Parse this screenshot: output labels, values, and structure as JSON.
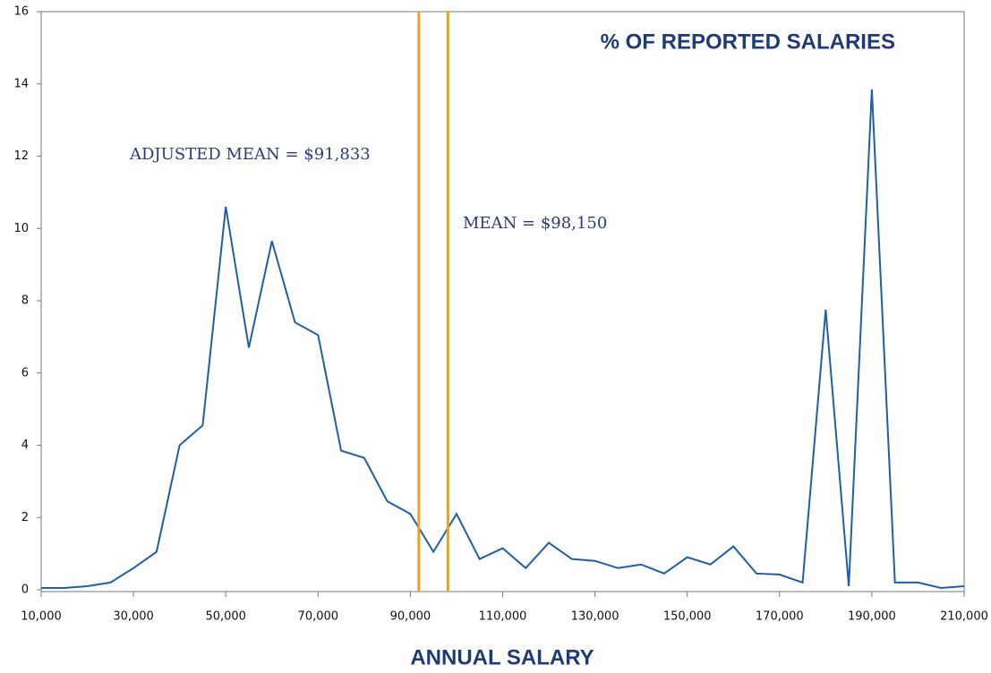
{
  "chart_data": {
    "type": "line",
    "title": "% OF REPORTED SALARIES",
    "x_label": "ANNUAL SALARY",
    "x": [
      10000,
      15000,
      20000,
      25000,
      30000,
      35000,
      40000,
      45000,
      50000,
      55000,
      60000,
      65000,
      70000,
      75000,
      80000,
      85000,
      90000,
      95000,
      100000,
      105000,
      110000,
      115000,
      120000,
      125000,
      130000,
      135000,
      140000,
      145000,
      150000,
      155000,
      160000,
      165000,
      170000,
      175000,
      180000,
      185000,
      190000,
      195000,
      200000,
      205000,
      210000
    ],
    "series": [
      {
        "color": "#1f5fa8",
        "values": [
          0.05,
          0.05,
          0.1,
          0.2,
          0.6,
          1.05,
          4.0,
          4.55,
          10.6,
          6.7,
          9.65,
          7.4,
          7.05,
          3.85,
          3.65,
          2.45,
          2.1,
          1.05,
          2.1,
          0.85,
          1.15,
          0.6,
          1.3,
          0.85,
          0.8,
          0.6,
          0.7,
          0.45,
          0.9,
          0.7,
          1.2,
          0.45,
          0.42,
          0.2,
          7.75,
          0.1,
          13.85,
          0.2,
          0.2,
          0.05,
          0.1
        ]
      }
    ],
    "xlim": [
      10000,
      210000
    ],
    "ylim": [
      0,
      16
    ],
    "yticks": [
      0,
      2,
      4,
      6,
      8,
      10,
      12,
      14,
      16
    ],
    "xticks": [
      {
        "value": 10000,
        "label": "10,000"
      },
      {
        "value": 30000,
        "label": "30,000"
      },
      {
        "value": 50000,
        "label": "50,000"
      },
      {
        "value": 70000,
        "label": "70,000"
      },
      {
        "value": 90000,
        "label": "90,000"
      },
      {
        "value": 110000,
        "label": "110,000"
      },
      {
        "value": 130000,
        "label": "130,000"
      },
      {
        "value": 150000,
        "label": "150,000"
      },
      {
        "value": 170000,
        "label": "170,000"
      },
      {
        "value": 190000,
        "label": "190,000"
      },
      {
        "value": 210000,
        "label": "210,000"
      }
    ],
    "vlines": [
      {
        "value": 91833,
        "label": "ADJUSTED MEAN = $91,833",
        "color": "#f0a020"
      },
      {
        "value": 98150,
        "label": "MEAN = $98,150",
        "color": "#f0a020"
      }
    ]
  }
}
